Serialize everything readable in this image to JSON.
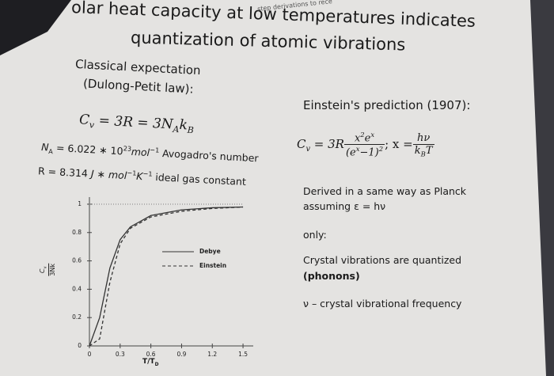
{
  "header": {
    "fragment": "step derivations to rece"
  },
  "title": {
    "lines": [
      "olar heat capacity at low temperatures indicates",
      "quantization of atomic vibrations"
    ]
  },
  "classical": {
    "heading": [
      "Classical expectation",
      "(Dulong-Petit law):"
    ],
    "formula": [
      "C",
      "v",
      " = 3R = 3N",
      "A",
      "k",
      "B"
    ],
    "avogadro": [
      "N",
      "A",
      " = 6.022 ∗ 10",
      "23",
      "mol",
      "−1",
      " Avogadro's number"
    ],
    "gas_constant": [
      "R = 8.314 ",
      "J",
      " ∗ ",
      "mol",
      "−1",
      "K",
      "−1",
      " ideal gas constant"
    ]
  },
  "einstein": {
    "heading": "Einstein's prediction (1907):",
    "formula": [
      "C",
      "v",
      " = 3R",
      "x",
      "2",
      "e",
      "x",
      "(e",
      "x",
      "−1)",
      "2",
      "; x =",
      "hν",
      "k",
      "B",
      "T"
    ],
    "notes": [
      "Derived in a same way as Planck",
      "assuming ε = hν",
      "only:",
      "Crystal vibrations are quantized",
      "(phonons)",
      "ν – crystal vibrational frequency"
    ]
  },
  "chart_data": {
    "type": "line",
    "xlabel": [
      "T/T",
      "D"
    ],
    "ylabel": [
      "C",
      "v",
      "3Nk"
    ],
    "x": [
      0,
      0.1,
      0.2,
      0.3,
      0.4,
      0.6,
      0.9,
      1.2,
      1.5
    ],
    "series": [
      {
        "name": "Debye",
        "color": "#333333",
        "dash": "none",
        "values": [
          0,
          0.2,
          0.55,
          0.75,
          0.84,
          0.92,
          0.96,
          0.975,
          0.98
        ]
      },
      {
        "name": "Einstein",
        "color": "#333333",
        "dash": "4 3",
        "values": [
          0,
          0.05,
          0.45,
          0.72,
          0.83,
          0.91,
          0.95,
          0.97,
          0.98
        ]
      },
      {
        "color": "#999999",
        "dash": "1 2",
        "values": [
          1,
          1,
          1,
          1,
          1,
          1,
          1,
          1,
          1
        ]
      }
    ],
    "xlim": [
      0,
      1.6
    ],
    "ylim": [
      0,
      1.05
    ],
    "xticks": [
      0,
      0.3,
      0.6,
      0.9,
      1.2,
      1.5
    ],
    "yticks": [
      0,
      0.2,
      0.4,
      0.6,
      0.8,
      1
    ]
  }
}
